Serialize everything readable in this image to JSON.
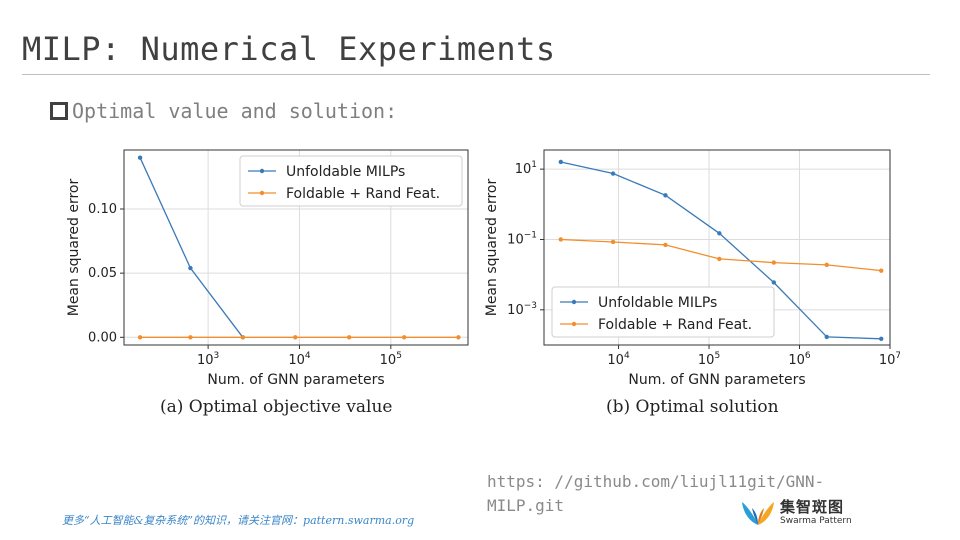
{
  "slide": {
    "title": "MILP: Numerical Experiments",
    "bullet": "Optimal value and solution:",
    "link": "https: //github.com/liujl11git/GNN-MILP.git",
    "footer": "更多“人工智能&复杂系统”的知识，请关注官网：pattern.swarma.org",
    "logo_cn": "集智斑图",
    "logo_en": "Swarma Pattern"
  },
  "colors": {
    "blue": "#3b7ab8",
    "orange": "#f28e2b"
  },
  "chart_data": [
    {
      "type": "line",
      "caption": "(a) Optimal objective value",
      "xscale": "log",
      "yscale": "linear",
      "xlabel": "Num. of GNN parameters",
      "ylabel": "Mean squared error",
      "xlim": [
        120,
        700000
      ],
      "ylim": [
        -0.006,
        0.146
      ],
      "xticks": [
        {
          "value": 1000,
          "base": "10",
          "exp": "3"
        },
        {
          "value": 10000,
          "base": "10",
          "exp": "4"
        },
        {
          "value": 100000,
          "base": "10",
          "exp": "5"
        }
      ],
      "yticks": [
        {
          "value": 0.0,
          "label": "0.00"
        },
        {
          "value": 0.05,
          "label": "0.05"
        },
        {
          "value": 0.1,
          "label": "0.10"
        }
      ],
      "legend_position": "top-right",
      "series": [
        {
          "name": "Unfoldable MILPs",
          "color": "#3b7ab8",
          "x": [
            180,
            640,
            2400
          ],
          "y": [
            0.14,
            0.054,
            0.0
          ]
        },
        {
          "name": "Foldable + Rand Feat.",
          "color": "#f28e2b",
          "x": [
            180,
            640,
            2400,
            9000,
            35000,
            140000,
            550000
          ],
          "y": [
            0.0,
            0.0,
            0.0,
            0.0,
            0.0,
            0.0,
            0.0
          ]
        }
      ]
    },
    {
      "type": "line",
      "caption": "(b) Optimal solution",
      "xscale": "log",
      "yscale": "log",
      "xlabel": "Num. of GNN parameters",
      "ylabel": "Mean squared error",
      "xlim": [
        1500,
        10000000
      ],
      "ylim": [
        0.0001,
        35
      ],
      "xticks": [
        {
          "value": 10000,
          "base": "10",
          "exp": "4"
        },
        {
          "value": 100000,
          "base": "10",
          "exp": "5"
        },
        {
          "value": 1000000,
          "base": "10",
          "exp": "6"
        },
        {
          "value": 10000000,
          "base": "10",
          "exp": "7"
        }
      ],
      "yticks": [
        {
          "value": 0.001,
          "base": "10",
          "exp": "−3"
        },
        {
          "value": 0.1,
          "base": "10",
          "exp": "−1"
        },
        {
          "value": 10,
          "base": "10",
          "exp": "1"
        }
      ],
      "legend_position": "bottom-left",
      "series": [
        {
          "name": "Unfoldable MILPs",
          "color": "#3b7ab8",
          "x": [
            2300,
            8700,
            33000,
            130000,
            520000,
            2000000,
            8000000
          ],
          "y": [
            16,
            7.5,
            1.8,
            0.15,
            0.006,
            0.00017,
            0.00015
          ]
        },
        {
          "name": "Foldable + Rand Feat.",
          "color": "#f28e2b",
          "x": [
            2300,
            8700,
            33000,
            130000,
            520000,
            2000000,
            8000000
          ],
          "y": [
            0.1,
            0.085,
            0.07,
            0.028,
            0.022,
            0.019,
            0.013
          ]
        }
      ]
    }
  ]
}
